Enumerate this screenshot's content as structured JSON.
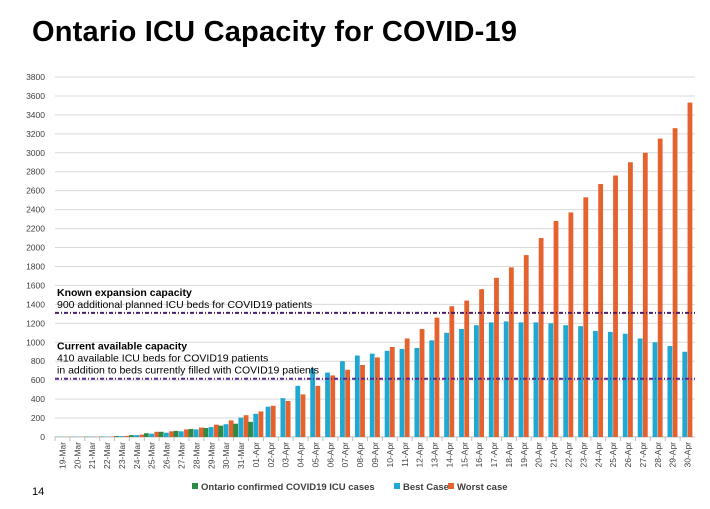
{
  "page": {
    "title": "Ontario ICU Capacity for COVID-19",
    "page_number": "14"
  },
  "chart_data": {
    "type": "bar",
    "title": "",
    "xlabel": "",
    "ylabel": "",
    "ylim": [
      0,
      3800
    ],
    "yticks": [
      0,
      200,
      400,
      600,
      800,
      1000,
      1200,
      1400,
      1600,
      1800,
      2000,
      2200,
      2400,
      2600,
      2800,
      3000,
      3200,
      3400,
      3600,
      3800
    ],
    "grid": true,
    "legend_position": "bottom",
    "categories": [
      "19-Mar",
      "20-Mar",
      "21-Mar",
      "22-Mar",
      "23-Mar",
      "24-Mar",
      "25-Mar",
      "26-Mar",
      "27-Mar",
      "28-Mar",
      "29-Mar",
      "30-Mar",
      "31-Mar",
      "01-Apr",
      "02-Apr",
      "03-Apr",
      "04-Apr",
      "05-Apr",
      "06-Apr",
      "07-Apr",
      "08-Apr",
      "09-Apr",
      "10-Apr",
      "11-Apr",
      "12-Apr",
      "13-Apr",
      "14-Apr",
      "15-Apr",
      "16-Apr",
      "17-Apr",
      "18-Apr",
      "19-Apr",
      "20-Apr",
      "21-Apr",
      "22-Apr",
      "23-Apr",
      "24-Apr",
      "25-Apr",
      "26-Apr",
      "27-Apr",
      "28-Apr",
      "29-Apr",
      "30-Apr"
    ],
    "series": [
      {
        "name": "Ontario confirmed COVID19 ICU cases",
        "color": "#2e8b47",
        "values": [
          2,
          3,
          4,
          5,
          10,
          20,
          40,
          55,
          65,
          85,
          95,
          120,
          140,
          160,
          null,
          null,
          null,
          null,
          null,
          null,
          null,
          null,
          null,
          null,
          null,
          null,
          null,
          null,
          null,
          null,
          null,
          null,
          null,
          null,
          null,
          null,
          null,
          null,
          null,
          null,
          null,
          null,
          null
        ]
      },
      {
        "name": "Best Case",
        "color": "#1fa8d2",
        "values": [
          2,
          3,
          4,
          5,
          10,
          20,
          35,
          45,
          60,
          80,
          105,
          135,
          205,
          245,
          320,
          410,
          540,
          720,
          680,
          800,
          860,
          880,
          910,
          930,
          940,
          1020,
          1100,
          1140,
          1180,
          1210,
          1220,
          1210,
          1210,
          1200,
          1180,
          1170,
          1120,
          1110,
          1090,
          1040,
          1000,
          960,
          900
        ]
      },
      {
        "name": "Worst case",
        "color": "#e5612d",
        "values": [
          2,
          3,
          4,
          5,
          12,
          25,
          55,
          60,
          80,
          100,
          130,
          175,
          230,
          270,
          330,
          380,
          450,
          540,
          650,
          710,
          760,
          840,
          950,
          1040,
          1140,
          1260,
          1380,
          1440,
          1560,
          1680,
          1790,
          1920,
          2100,
          2280,
          2370,
          2530,
          2670,
          2760,
          2900,
          3000,
          3150,
          3260,
          3530
        ]
      }
    ],
    "reference_lines": [
      {
        "value": 1310,
        "color": "#4b1f6b",
        "heading": "Known expansion capacity",
        "text": [
          "900 additional planned ICU beds for COVID19 patients"
        ]
      },
      {
        "value": 615,
        "color": "#5b2a8c",
        "heading": "Current available capacity",
        "text": [
          "410 available ICU beds for COVID19 patients",
          "in addition to beds currently filled with COVID19 patients"
        ]
      }
    ]
  }
}
